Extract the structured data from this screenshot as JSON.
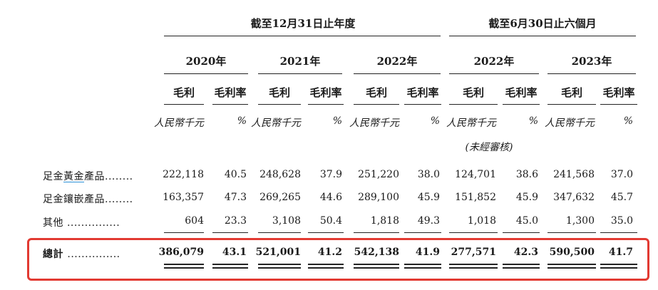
{
  "groups": {
    "annual": "截至12月31日止年度",
    "halfyear": "截至6月30日止六個月"
  },
  "years": [
    "2020年",
    "2021年",
    "2022年",
    "2022年",
    "2023年"
  ],
  "col_headers": {
    "gross_profit": "毛利",
    "margin": "毛利率"
  },
  "units": {
    "amount": "人民幣千元",
    "percent": "%"
  },
  "unaudited": "(未經審核)",
  "rows": [
    {
      "label": "足金黃金產品",
      "label_link": "黃金",
      "label_pre": "足金",
      "label_post": "產品",
      "values": [
        "222,118",
        "40.5",
        "248,628",
        "37.9",
        "251,220",
        "38.0",
        "124,701",
        "38.6",
        "241,568",
        "37.0"
      ]
    },
    {
      "label": "足金鑲嵌產品",
      "values": [
        "163,357",
        "47.3",
        "269,265",
        "44.6",
        "289,100",
        "45.9",
        "151,852",
        "45.9",
        "347,632",
        "45.7"
      ]
    },
    {
      "label": "其他",
      "values": [
        "604",
        "23.3",
        "3,108",
        "50.4",
        "1,818",
        "49.3",
        "1,018",
        "45.0",
        "1,300",
        "35.0"
      ]
    }
  ],
  "total": {
    "label": "總計",
    "values": [
      "386,079",
      "43.1",
      "521,001",
      "41.2",
      "542,138",
      "41.9",
      "277,571",
      "42.3",
      "590,500",
      "41.7"
    ]
  },
  "dots": {
    "row0": "........",
    "row1": "........",
    "row2": "...............",
    "total": "..............."
  },
  "highlight_color": "#e23a32"
}
